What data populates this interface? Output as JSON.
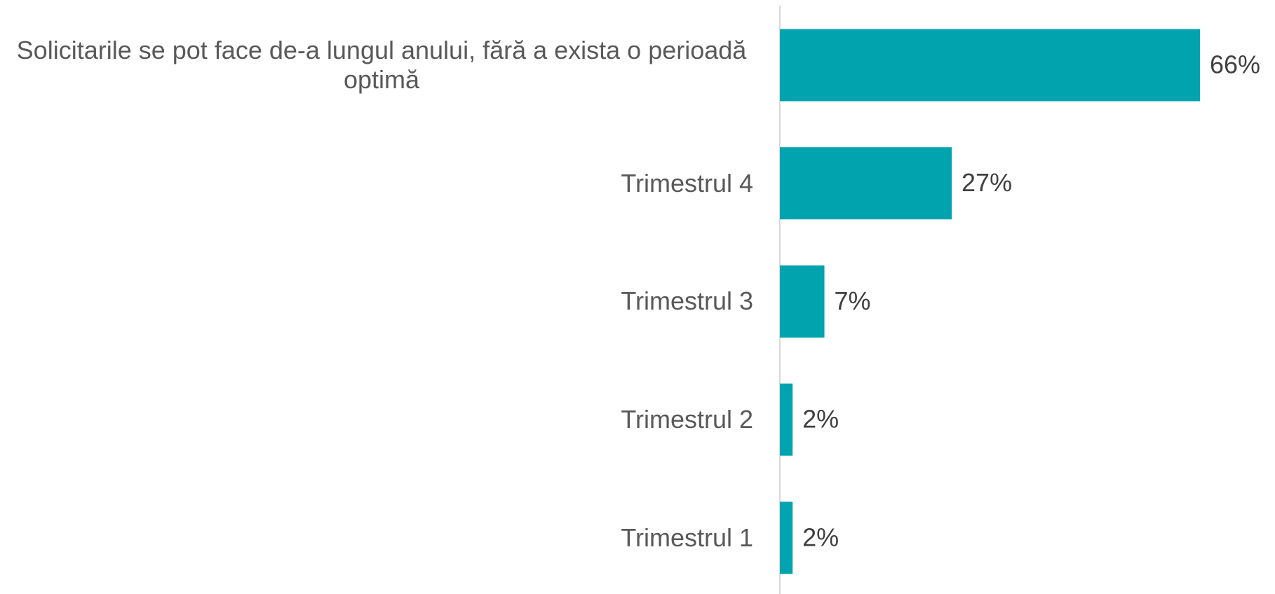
{
  "chart_data": {
    "type": "barh",
    "categories": [
      "Solicitarile se pot face de-a lungul anului, fără a exista o perioadă optimă",
      "Trimestrul 4",
      "Trimestrul 3",
      "Trimestrul 2",
      "Trimestrul 1"
    ],
    "values": [
      66,
      27,
      7,
      2,
      2
    ],
    "value_labels": [
      "66%",
      "27%",
      "7%",
      "2%",
      "2%"
    ],
    "color": "#00a3ae"
  }
}
